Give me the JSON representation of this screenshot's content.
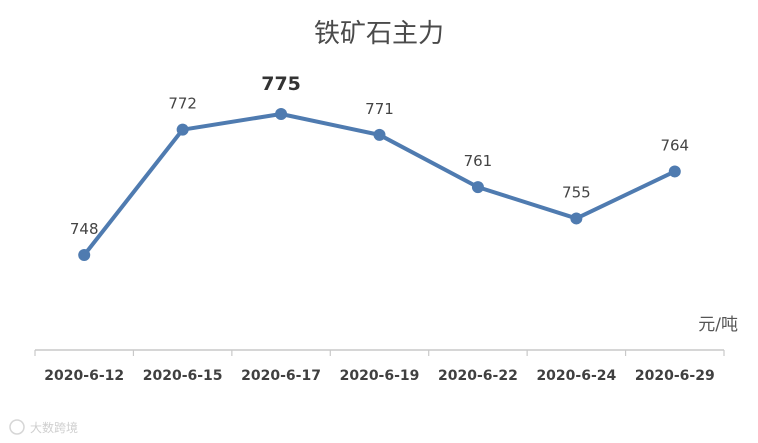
{
  "chart_data": {
    "type": "line",
    "title": "铁矿石主力",
    "unit": "元/吨",
    "categories": [
      "2020-6-12",
      "2020-6-15",
      "2020-6-17",
      "2020-6-19",
      "2020-6-22",
      "2020-6-24",
      "2020-6-29"
    ],
    "series": [
      {
        "values": [
          748,
          772,
          775,
          771,
          761,
          755,
          764
        ],
        "color": "#4f7bb0"
      }
    ],
    "highlight_index": 2,
    "ylim": [
      730,
      790
    ],
    "grid": false,
    "legend": "none"
  },
  "watermark": "大数跨境"
}
